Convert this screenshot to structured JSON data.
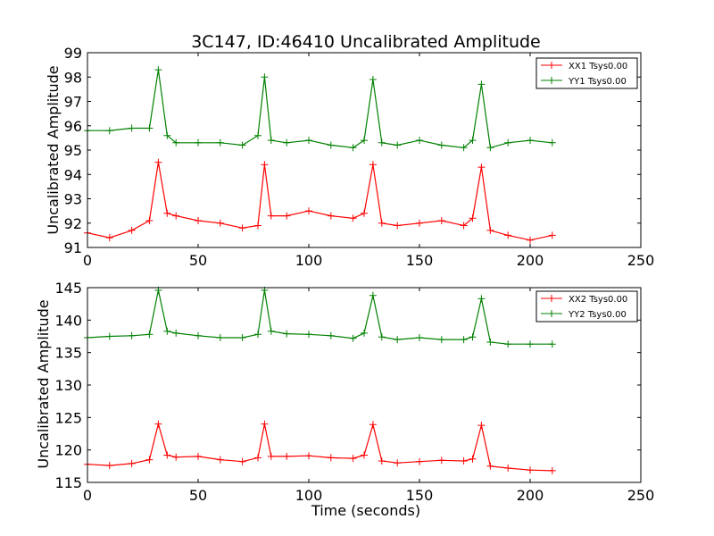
{
  "chart_data": [
    {
      "type": "line",
      "title": "3C147, ID:46410 Uncalibrated Amplitude",
      "xlabel": "",
      "ylabel": "Uncalibrated Amplitude",
      "xlim": [
        0,
        250
      ],
      "ylim": [
        91,
        99
      ],
      "xticks": [
        "0",
        "50",
        "100",
        "150",
        "200",
        "250"
      ],
      "yticks": [
        "91",
        "92",
        "93",
        "94",
        "95",
        "96",
        "97",
        "98",
        "99"
      ],
      "grid": false,
      "legend": "top-right",
      "marker": "+",
      "x": [
        0,
        10,
        20,
        28,
        32,
        36,
        40,
        50,
        60,
        70,
        77,
        80,
        83,
        90,
        100,
        110,
        120,
        125,
        129,
        133,
        140,
        150,
        160,
        170,
        174,
        178,
        182,
        190,
        200,
        210
      ],
      "series": [
        {
          "name": "XX1 Tsys0.00",
          "color": "#ff0000",
          "values": [
            91.6,
            91.4,
            91.7,
            92.1,
            94.5,
            92.4,
            92.3,
            92.1,
            92.0,
            91.8,
            91.9,
            94.4,
            92.3,
            92.3,
            92.5,
            92.3,
            92.2,
            92.4,
            94.4,
            92.0,
            91.9,
            92.0,
            92.1,
            91.9,
            92.2,
            94.3,
            91.7,
            91.5,
            91.3,
            91.5
          ]
        },
        {
          "name": "YY1 Tsys0.00",
          "color": "#008000",
          "values": [
            95.8,
            95.8,
            95.9,
            95.9,
            98.3,
            95.6,
            95.3,
            95.3,
            95.3,
            95.2,
            95.6,
            98.0,
            95.4,
            95.3,
            95.4,
            95.2,
            95.1,
            95.4,
            97.9,
            95.3,
            95.2,
            95.4,
            95.2,
            95.1,
            95.4,
            97.7,
            95.1,
            95.3,
            95.4,
            95.3
          ]
        }
      ]
    },
    {
      "type": "line",
      "title": "",
      "xlabel": "Time (seconds)",
      "ylabel": "Uncalibrated Amplitude",
      "xlim": [
        0,
        250
      ],
      "ylim": [
        115,
        145
      ],
      "xticks": [
        "0",
        "50",
        "100",
        "150",
        "200",
        "250"
      ],
      "yticks": [
        "115",
        "120",
        "125",
        "130",
        "135",
        "140",
        "145"
      ],
      "grid": false,
      "legend": "top-right",
      "marker": "+",
      "x": [
        0,
        10,
        20,
        28,
        32,
        36,
        40,
        50,
        60,
        70,
        77,
        80,
        83,
        90,
        100,
        110,
        120,
        125,
        129,
        133,
        140,
        150,
        160,
        170,
        174,
        178,
        182,
        190,
        200,
        210
      ],
      "series": [
        {
          "name": "XX2 Tsys0.00",
          "color": "#ff0000",
          "values": [
            117.8,
            117.6,
            117.9,
            118.5,
            124.0,
            119.2,
            118.9,
            119.0,
            118.5,
            118.2,
            118.8,
            124.0,
            119.0,
            119.0,
            119.1,
            118.8,
            118.7,
            119.2,
            123.9,
            118.3,
            118.0,
            118.2,
            118.4,
            118.3,
            118.6,
            123.8,
            117.5,
            117.2,
            116.9,
            116.8
          ]
        },
        {
          "name": "YY2 Tsys0.00",
          "color": "#008000",
          "values": [
            137.3,
            137.5,
            137.6,
            137.8,
            144.6,
            138.3,
            138.0,
            137.6,
            137.3,
            137.3,
            137.8,
            144.6,
            138.3,
            137.9,
            137.8,
            137.6,
            137.2,
            138.0,
            143.8,
            137.4,
            137.0,
            137.3,
            137.0,
            137.0,
            137.4,
            143.3,
            136.6,
            136.3,
            136.3,
            136.3
          ]
        }
      ]
    }
  ]
}
